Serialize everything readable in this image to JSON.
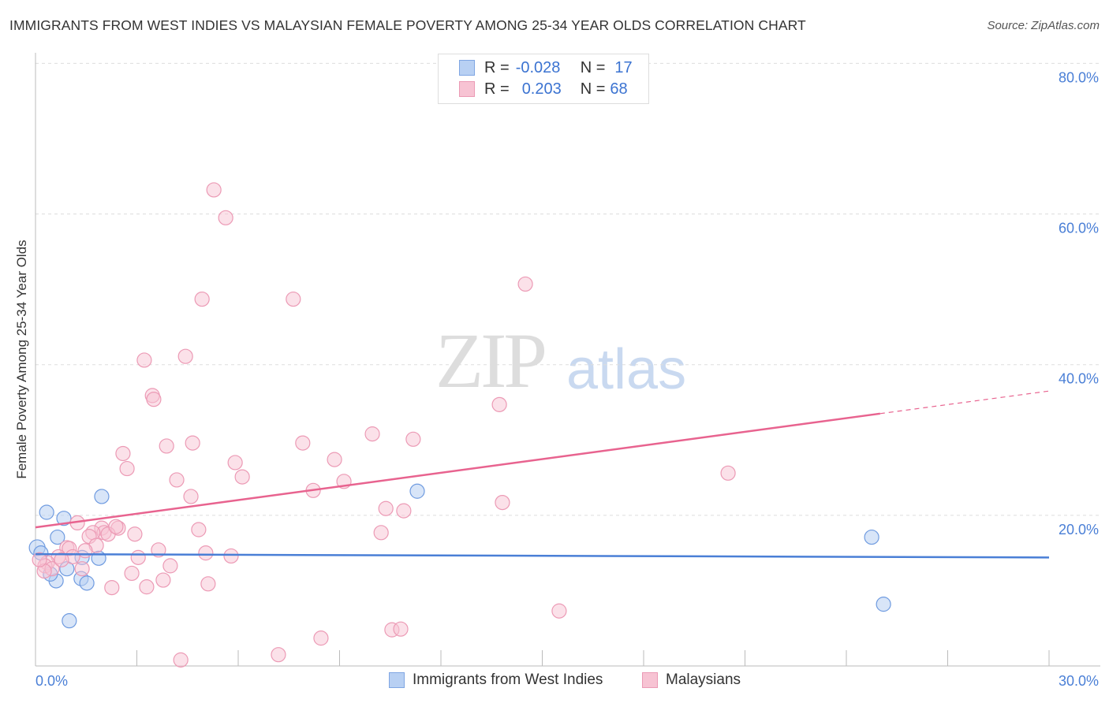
{
  "title": "IMMIGRANTS FROM WEST INDIES VS MALAYSIAN FEMALE POVERTY AMONG 25-34 YEAR OLDS CORRELATION CHART",
  "source": "Source: ZipAtlas.com",
  "watermark": {
    "zip": "ZIP",
    "atlas": "atlas"
  },
  "legend": {
    "rows": [
      {
        "r_label": "R =",
        "r_value": "-0.028",
        "n_label": "N =",
        "n_value": "17"
      },
      {
        "r_label": "R =",
        "r_value": "0.203",
        "n_label": "N =",
        "n_value": "68"
      }
    ]
  },
  "chart_data": {
    "type": "scatter",
    "title": "IMMIGRANTS FROM WEST INDIES VS MALAYSIAN FEMALE POVERTY AMONG 25-34 YEAR OLDS CORRELATION CHART",
    "xlabel": "",
    "ylabel": "Female Poverty Among 25-34 Year Olds",
    "xlim": [
      0,
      30
    ],
    "ylim": [
      0,
      81.4
    ],
    "x_tick_labels": [
      "0.0%",
      "30.0%"
    ],
    "y_ticks": [
      20,
      40,
      60,
      80
    ],
    "y_tick_labels": [
      "20.0%",
      "40.0%",
      "60.0%",
      "80.0%"
    ],
    "grid": true,
    "legend_position": "bottom",
    "colors": {
      "blue": "#4a7fd6",
      "blue_fill": "#b8d0f3",
      "pink": "#e8638f",
      "pink_fill": "#f7c3d3"
    },
    "series": [
      {
        "name": "Immigrants from West Indies",
        "color": "#4a7fd6",
        "trend": [
          [
            0,
            14.85
          ],
          [
            30,
            14.4
          ]
        ],
        "points": [
          [
            0.05,
            15.7
          ],
          [
            0.16,
            15.0
          ],
          [
            0.33,
            20.4
          ],
          [
            0.65,
            17.1
          ],
          [
            0.84,
            19.6
          ],
          [
            0.93,
            12.9
          ],
          [
            0.61,
            11.3
          ],
          [
            0.44,
            12.2
          ],
          [
            1.0,
            6.0
          ],
          [
            1.38,
            14.4
          ],
          [
            1.35,
            11.6
          ],
          [
            1.52,
            11.0
          ],
          [
            1.87,
            14.3
          ],
          [
            1.96,
            22.5
          ],
          [
            11.3,
            23.2
          ],
          [
            24.75,
            17.1
          ],
          [
            25.1,
            8.2
          ]
        ]
      },
      {
        "name": "Malaysians",
        "color": "#e8638f",
        "trend": [
          [
            0,
            18.4
          ],
          [
            25,
            33.5
          ]
        ],
        "trend_dashed": [
          [
            25,
            33.5
          ],
          [
            30,
            36.5
          ]
        ],
        "points": [
          [
            5.28,
            63.2
          ],
          [
            5.63,
            59.5
          ],
          [
            4.93,
            48.7
          ],
          [
            7.63,
            48.7
          ],
          [
            14.5,
            50.7
          ],
          [
            3.22,
            40.6
          ],
          [
            4.44,
            41.1
          ],
          [
            3.46,
            35.9
          ],
          [
            3.5,
            35.4
          ],
          [
            13.73,
            34.7
          ],
          [
            9.97,
            30.8
          ],
          [
            11.18,
            30.1
          ],
          [
            7.91,
            29.6
          ],
          [
            4.65,
            29.6
          ],
          [
            3.88,
            29.2
          ],
          [
            2.59,
            28.2
          ],
          [
            8.85,
            27.4
          ],
          [
            5.91,
            27.0
          ],
          [
            2.71,
            26.2
          ],
          [
            6.12,
            25.1
          ],
          [
            4.18,
            24.7
          ],
          [
            9.13,
            24.5
          ],
          [
            20.5,
            25.6
          ],
          [
            8.22,
            23.3
          ],
          [
            4.6,
            22.5
          ],
          [
            13.82,
            21.7
          ],
          [
            10.37,
            20.9
          ],
          [
            10.9,
            20.6
          ],
          [
            1.24,
            19.0
          ],
          [
            1.96,
            18.3
          ],
          [
            2.45,
            18.3
          ],
          [
            2.03,
            17.7
          ],
          [
            1.7,
            17.7
          ],
          [
            1.59,
            17.2
          ],
          [
            2.94,
            17.5
          ],
          [
            2.15,
            17.5
          ],
          [
            2.38,
            18.5
          ],
          [
            4.83,
            18.1
          ],
          [
            10.23,
            17.7
          ],
          [
            0.93,
            15.7
          ],
          [
            1.0,
            15.6
          ],
          [
            1.8,
            16.0
          ],
          [
            1.47,
            15.3
          ],
          [
            3.64,
            15.4
          ],
          [
            3.04,
            14.4
          ],
          [
            5.04,
            15.0
          ],
          [
            5.79,
            14.6
          ],
          [
            0.68,
            14.5
          ],
          [
            1.1,
            14.5
          ],
          [
            0.35,
            13.7
          ],
          [
            0.28,
            13.3
          ],
          [
            0.49,
            12.9
          ],
          [
            1.38,
            12.9
          ],
          [
            3.99,
            13.3
          ],
          [
            2.85,
            12.3
          ],
          [
            3.78,
            11.4
          ],
          [
            0.26,
            12.6
          ],
          [
            5.11,
            10.9
          ],
          [
            3.29,
            10.5
          ],
          [
            2.26,
            10.4
          ],
          [
            15.5,
            7.3
          ],
          [
            10.55,
            4.8
          ],
          [
            10.81,
            4.9
          ],
          [
            8.45,
            3.7
          ],
          [
            7.19,
            1.5
          ],
          [
            4.3,
            0.8
          ],
          [
            0.12,
            14.1
          ],
          [
            0.77,
            14.1
          ]
        ]
      }
    ]
  }
}
